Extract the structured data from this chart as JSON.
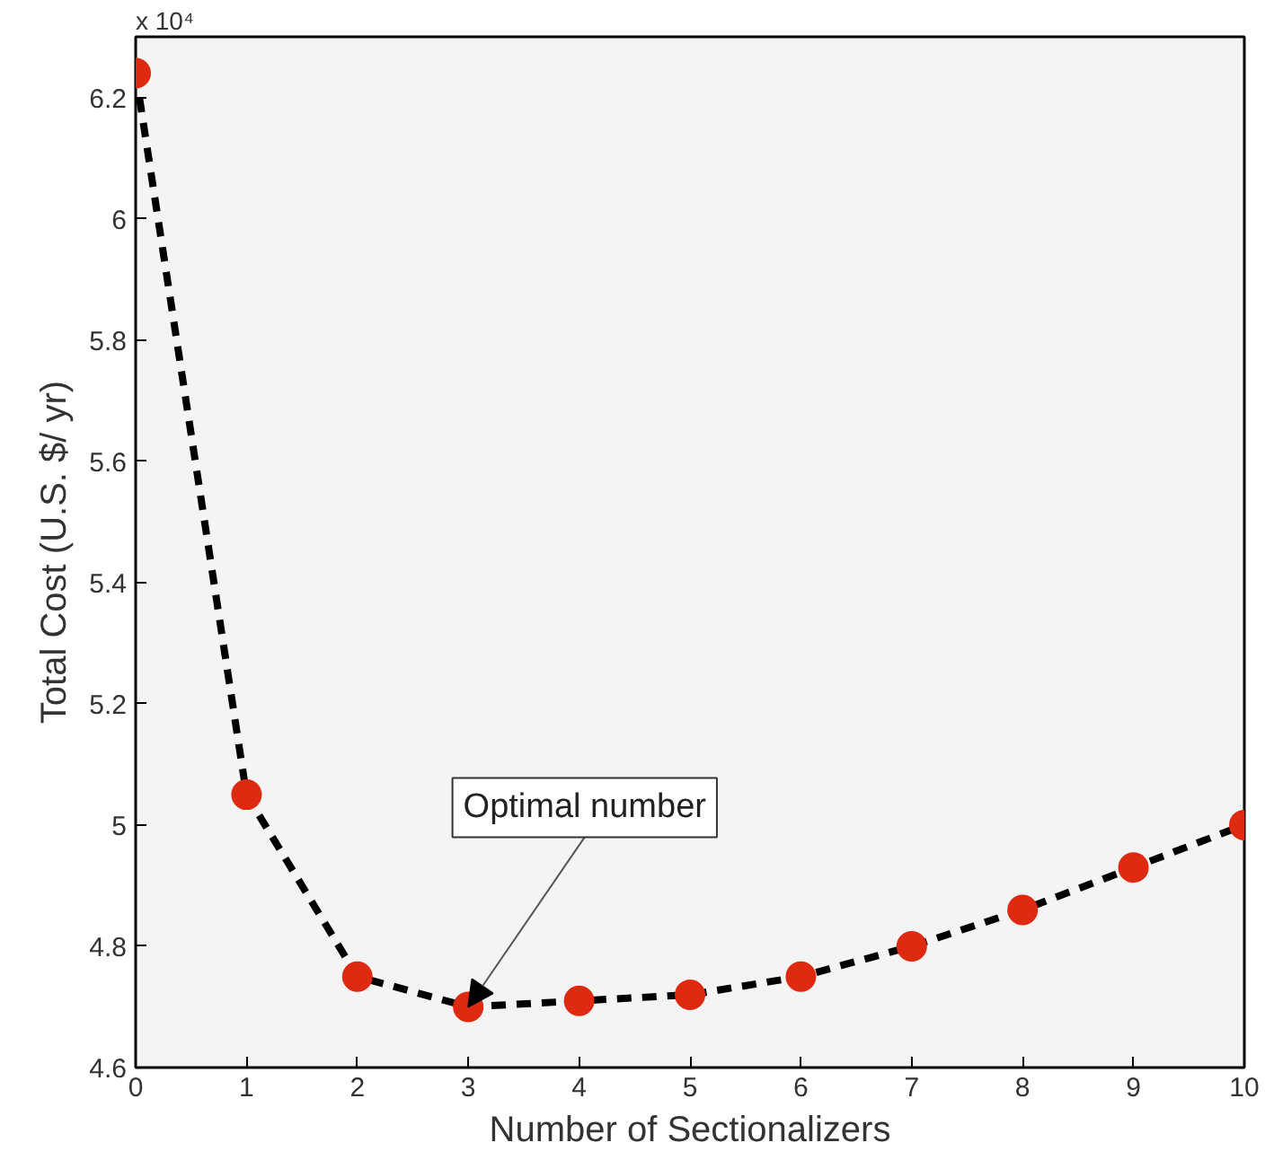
{
  "chart_data": {
    "type": "line",
    "xlabel": "Number of Sectionalizers",
    "ylabel": "Total Cost (U.S. $/ yr)",
    "x": [
      0,
      1,
      2,
      3,
      4,
      5,
      6,
      7,
      8,
      9,
      10
    ],
    "series": [
      {
        "color": "#dd2a10",
        "values": [
          6.24,
          5.05,
          4.75,
          4.7,
          4.71,
          4.72,
          4.75,
          4.8,
          4.86,
          4.93,
          5.0
        ]
      }
    ],
    "xlim": [
      0,
      10
    ],
    "ylim": [
      4.6,
      6.3
    ],
    "xticks": [
      0,
      1,
      2,
      3,
      4,
      5,
      6,
      7,
      8,
      9,
      10
    ],
    "yticks": [
      4.6,
      4.8,
      5,
      5.2,
      5.4,
      5.6,
      5.8,
      6,
      6.2
    ],
    "annotations": [
      "x 10⁴",
      {
        "text": "Optimal number",
        "x": 3,
        "y": 4.7
      }
    ],
    "grid": false,
    "marker": "circle",
    "line_style": "dashed"
  }
}
